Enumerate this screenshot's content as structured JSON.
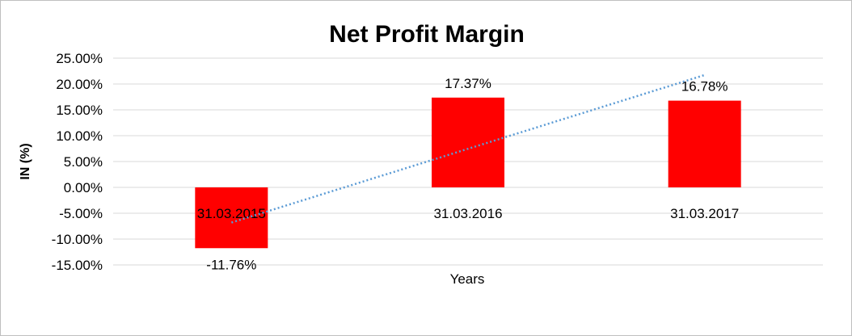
{
  "chart_data": {
    "type": "bar",
    "title": "Net Profit Margin",
    "xlabel": "Years",
    "ylabel": "IN (%)",
    "categories": [
      "31.03.2015",
      "31.03.2016",
      "31.03.2017"
    ],
    "values": [
      -11.76,
      17.37,
      16.78
    ],
    "data_labels": [
      "-11.76%",
      "17.37%",
      "16.78%"
    ],
    "ylim": [
      -15,
      25
    ],
    "y_ticks": [
      -15,
      -10,
      -5,
      0,
      5,
      10,
      15,
      20,
      25
    ],
    "y_tick_labels": [
      "-15.00%",
      "-10.00%",
      "-5.00%",
      "0.00%",
      "5.00%",
      "10.00%",
      "15.00%",
      "20.00%",
      "25.00%"
    ],
    "grid": true,
    "legend": "none",
    "trendline": {
      "type": "linear",
      "style": "dotted"
    },
    "colors": {
      "bar": "#ff0000",
      "trendline": "#5b9bd5",
      "grid": "#d9d9d9"
    }
  }
}
